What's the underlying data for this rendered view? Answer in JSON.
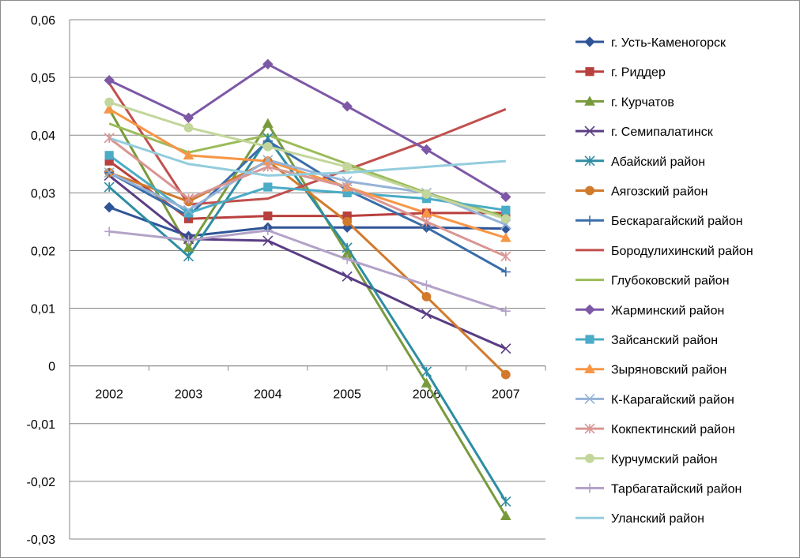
{
  "chart_data": {
    "type": "line",
    "x": [
      "2002",
      "2003",
      "2004",
      "2005",
      "2006",
      "2007"
    ],
    "ylim": [
      -0.03,
      0.06
    ],
    "ytick_step": 0.01,
    "ytick_labels": [
      "-0,03",
      "-0,02",
      "-0,01",
      "0",
      "0,01",
      "0,02",
      "0,03",
      "0,04",
      "0,05",
      "0,06"
    ],
    "grid": true,
    "legend_position": "right",
    "series": [
      {
        "name": "г. Усть-Каменогорск",
        "color": "#2f5597",
        "marker": "diamond",
        "values": [
          0.0275,
          0.0225,
          0.024,
          0.024,
          0.024,
          0.0238
        ]
      },
      {
        "name": "г. Риддер",
        "color": "#b8403d",
        "marker": "square",
        "values": [
          0.0355,
          0.0255,
          0.026,
          0.026,
          0.0265,
          0.0265
        ]
      },
      {
        "name": "г. Курчатов",
        "color": "#789a3c",
        "marker": "triangle",
        "values": [
          0.0445,
          0.0205,
          0.042,
          0.0195,
          -0.003,
          -0.026
        ]
      },
      {
        "name": "г. Семипалатинск",
        "color": "#5b3d84",
        "marker": "x",
        "values": [
          0.033,
          0.022,
          0.0217,
          0.0155,
          0.009,
          0.003
        ]
      },
      {
        "name": "Абайский район",
        "color": "#2e8da3",
        "marker": "star",
        "values": [
          0.031,
          0.019,
          0.0395,
          0.0205,
          -0.001,
          -0.0235
        ]
      },
      {
        "name": "Аягозский район",
        "color": "#d27a2b",
        "marker": "circle",
        "values": [
          0.0335,
          0.0285,
          0.0355,
          0.025,
          0.012,
          -0.0015
        ]
      },
      {
        "name": "Бескарагайский район",
        "color": "#3a6eaa",
        "marker": "plus",
        "values": [
          0.0335,
          0.026,
          0.039,
          0.0305,
          0.024,
          0.0163
        ]
      },
      {
        "name": "Бородулихинский район",
        "color": "#c0504d",
        "marker": "none",
        "values": [
          0.049,
          0.028,
          0.029,
          0.034,
          0.039,
          0.0445
        ]
      },
      {
        "name": "Глубоковский район",
        "color": "#9bbb59",
        "marker": "none",
        "values": [
          0.042,
          0.037,
          0.04,
          0.035,
          0.03,
          0.0258
        ]
      },
      {
        "name": "Жарминский район",
        "color": "#7d58a6",
        "marker": "diamond",
        "values": [
          0.0495,
          0.043,
          0.0523,
          0.045,
          0.0375,
          0.0293
        ]
      },
      {
        "name": "Зайсанский район",
        "color": "#4aacc6",
        "marker": "square",
        "values": [
          0.0365,
          0.0265,
          0.031,
          0.03,
          0.029,
          0.027
        ]
      },
      {
        "name": "Зыряновский район",
        "color": "#f79646",
        "marker": "triangle",
        "values": [
          0.0445,
          0.0365,
          0.0355,
          0.031,
          0.0265,
          0.0222
        ]
      },
      {
        "name": "К-Карагайский район",
        "color": "#95b3d7",
        "marker": "x",
        "values": [
          0.0335,
          0.027,
          0.0357,
          0.032,
          0.03,
          0.0245
        ]
      },
      {
        "name": "Кокпектинский район",
        "color": "#d99694",
        "marker": "star",
        "values": [
          0.0395,
          0.029,
          0.0345,
          0.031,
          0.025,
          0.019
        ]
      },
      {
        "name": "Курчумский район",
        "color": "#c3d69b",
        "marker": "circle",
        "values": [
          0.0457,
          0.0413,
          0.038,
          0.0345,
          0.0298,
          0.0255
        ]
      },
      {
        "name": "Тарбагатайский район",
        "color": "#b3a2c7",
        "marker": "plus",
        "values": [
          0.0233,
          0.0218,
          0.0235,
          0.0185,
          0.014,
          0.0095
        ]
      },
      {
        "name": "Уланский район",
        "color": "#93cddd",
        "marker": "none",
        "values": [
          0.0395,
          0.035,
          0.033,
          0.0335,
          0.0345,
          0.0355
        ]
      }
    ]
  }
}
